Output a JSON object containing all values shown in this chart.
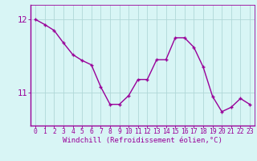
{
  "x": [
    0,
    1,
    2,
    3,
    4,
    5,
    6,
    7,
    8,
    9,
    10,
    11,
    12,
    13,
    14,
    15,
    16,
    17,
    18,
    19,
    20,
    21,
    22,
    23
  ],
  "y": [
    12.0,
    11.93,
    11.85,
    11.68,
    11.52,
    11.44,
    11.38,
    11.08,
    10.84,
    10.84,
    10.96,
    11.18,
    11.18,
    11.45,
    11.45,
    11.75,
    11.75,
    11.62,
    11.35,
    10.95,
    10.74,
    10.8,
    10.92,
    10.84
  ],
  "line_color": "#990099",
  "marker": "+",
  "marker_color": "#990099",
  "bg_color": "#d8f5f5",
  "grid_color": "#b0d8d8",
  "tick_color": "#990099",
  "axis_label_color": "#990099",
  "xlabel": "Windchill (Refroidissement éolien,°C)",
  "xlim": [
    -0.5,
    23.5
  ],
  "ylim": [
    10.55,
    12.2
  ],
  "yticks": [
    11,
    12
  ],
  "xticks": [
    0,
    1,
    2,
    3,
    4,
    5,
    6,
    7,
    8,
    9,
    10,
    11,
    12,
    13,
    14,
    15,
    16,
    17,
    18,
    19,
    20,
    21,
    22,
    23
  ],
  "xlabel_fontsize": 6.5,
  "tick_fontsize": 5.8,
  "ytick_fontsize": 7.5,
  "line_width": 1.0,
  "marker_size": 3.5
}
